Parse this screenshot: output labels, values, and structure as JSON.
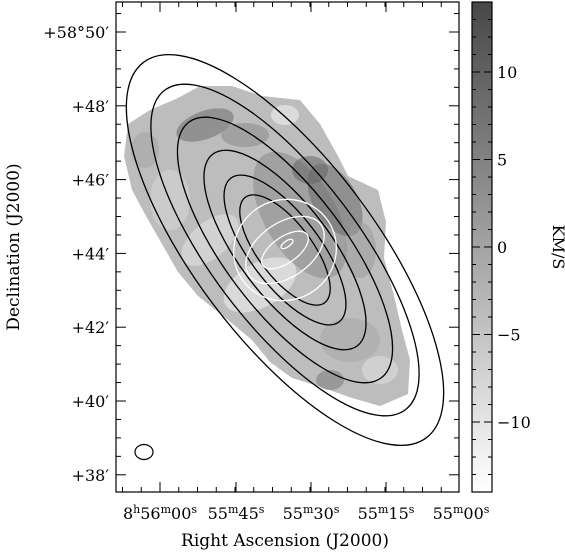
{
  "figure": {
    "xlabel": "Right Ascension (J2000)",
    "ylabel": "Declination (J2000)",
    "colorbar_label": "KM/S",
    "ra_ticks": [
      {
        "h": "8",
        "m": "56",
        "s": "00"
      },
      {
        "m": "55",
        "s": "45"
      },
      {
        "m": "55",
        "s": "30"
      },
      {
        "m": "55",
        "s": "15"
      },
      {
        "m": "55",
        "s": "00"
      }
    ],
    "dec_ticks": [
      {
        "text": "+58°50′",
        "value": 50
      },
      {
        "text": "+48′",
        "value": 48
      },
      {
        "text": "+46′",
        "value": 46
      },
      {
        "text": "+44′",
        "value": 44
      },
      {
        "text": "+42′",
        "value": 42
      },
      {
        "text": "+40′",
        "value": 40
      },
      {
        "text": "+38′",
        "value": 38
      }
    ],
    "colorbar": {
      "min": -14,
      "max": 14,
      "ticks": [
        {
          "text": "10",
          "value": 10
        },
        {
          "text": "5",
          "value": 5
        },
        {
          "text": "0",
          "value": 0
        },
        {
          "text": "−5",
          "value": -5
        },
        {
          "text": "−10",
          "value": -10
        }
      ],
      "color_low": "#ffffff",
      "color_high": "#474747"
    },
    "colors": {
      "contours_outer": "#000000",
      "contours_inner": "#ffffff",
      "background": "#ffffff"
    }
  }
}
